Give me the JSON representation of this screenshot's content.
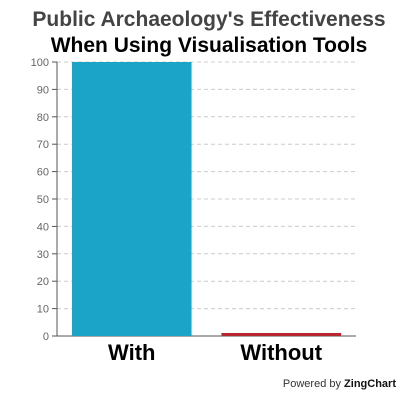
{
  "chart_data": {
    "type": "bar",
    "title": "Public Archaeology's Effectiveness",
    "subtitle": "When Using Visualisation Tools",
    "categories": [
      "With",
      "Without"
    ],
    "values": [
      100,
      1
    ],
    "colors": [
      "#1ba3c8",
      "#b8262f"
    ],
    "ylim": [
      0,
      100
    ],
    "yticks": [
      0,
      10,
      20,
      30,
      40,
      50,
      60,
      70,
      80,
      90,
      100
    ],
    "grid": true,
    "xlabel": "",
    "ylabel": ""
  },
  "credit": {
    "prefix": "Powered by",
    "brand": "ZingChart"
  }
}
